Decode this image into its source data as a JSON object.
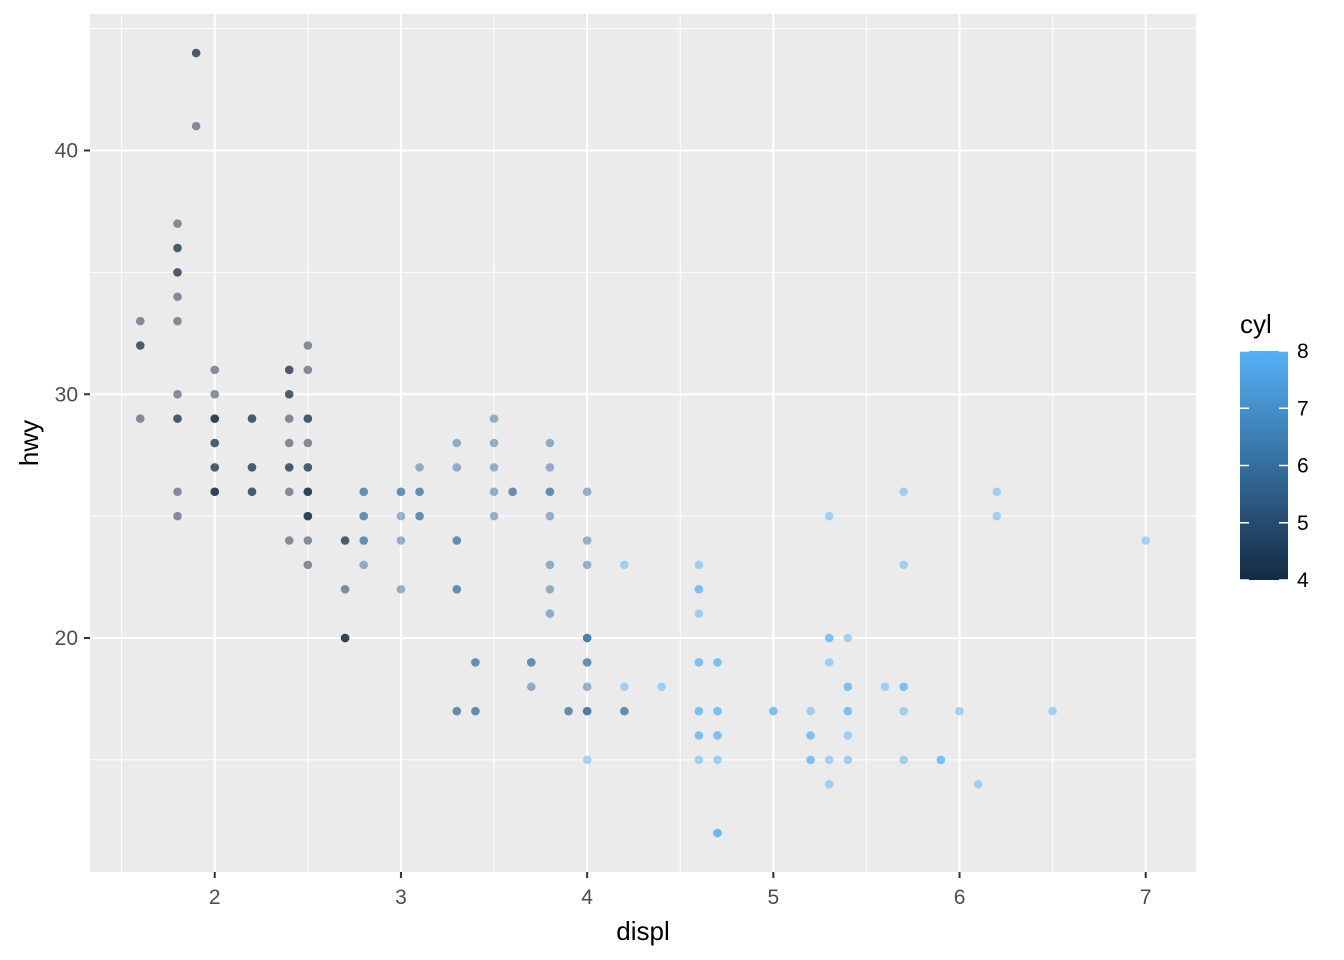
{
  "chart_data": {
    "type": "scatter",
    "title": "",
    "xlabel": "displ",
    "ylabel": "hwy",
    "xlim": [
      1.33,
      7.27
    ],
    "ylim": [
      10.4,
      45.6
    ],
    "x_ticks": [
      2,
      3,
      4,
      5,
      6,
      7
    ],
    "x_minor_ticks": [
      1.5,
      2.5,
      3.5,
      4.5,
      5.5,
      6.5
    ],
    "y_ticks": [
      20,
      30,
      40
    ],
    "y_minor_ticks": [
      15,
      25,
      35,
      45
    ],
    "x_tick_labels": [
      "2",
      "3",
      "4",
      "5",
      "6",
      "7"
    ],
    "y_tick_labels": [
      "20",
      "30",
      "40"
    ],
    "grid": true,
    "panel_background": "#ebebeb",
    "grid_color": "#ffffff",
    "point_alpha": 0.5,
    "color_scale": {
      "variable": "cyl",
      "low_color": "#132b43",
      "high_color": "#56b1f7",
      "range": [
        4,
        8
      ],
      "breaks": [
        4,
        5,
        6,
        7,
        8
      ],
      "break_labels": [
        "4",
        "5",
        "6",
        "7",
        "8"
      ]
    },
    "legend": {
      "title": "cyl",
      "position": "right"
    },
    "points": [
      {
        "x": 1.9,
        "y": 44,
        "c": 4
      },
      {
        "x": 1.9,
        "y": 44,
        "c": 4
      },
      {
        "x": 1.9,
        "y": 41,
        "c": 4
      },
      {
        "x": 1.8,
        "y": 37,
        "c": 4
      },
      {
        "x": 1.8,
        "y": 36,
        "c": 4
      },
      {
        "x": 1.8,
        "y": 36,
        "c": 4
      },
      {
        "x": 1.8,
        "y": 35,
        "c": 4
      },
      {
        "x": 1.8,
        "y": 35,
        "c": 4
      },
      {
        "x": 1.8,
        "y": 34,
        "c": 4
      },
      {
        "x": 1.8,
        "y": 33,
        "c": 4
      },
      {
        "x": 1.6,
        "y": 33,
        "c": 4
      },
      {
        "x": 1.6,
        "y": 32,
        "c": 4
      },
      {
        "x": 1.6,
        "y": 32,
        "c": 4
      },
      {
        "x": 1.6,
        "y": 29,
        "c": 4
      },
      {
        "x": 1.8,
        "y": 30,
        "c": 4
      },
      {
        "x": 1.8,
        "y": 29,
        "c": 4
      },
      {
        "x": 1.8,
        "y": 29,
        "c": 4
      },
      {
        "x": 1.8,
        "y": 26,
        "c": 4
      },
      {
        "x": 1.8,
        "y": 25,
        "c": 4
      },
      {
        "x": 2.0,
        "y": 31,
        "c": 4
      },
      {
        "x": 2.0,
        "y": 30,
        "c": 4
      },
      {
        "x": 2.0,
        "y": 29,
        "c": 4
      },
      {
        "x": 2.0,
        "y": 29,
        "c": 4
      },
      {
        "x": 2.0,
        "y": 29,
        "c": 4
      },
      {
        "x": 2.0,
        "y": 28,
        "c": 4
      },
      {
        "x": 2.0,
        "y": 28,
        "c": 4
      },
      {
        "x": 2.0,
        "y": 27,
        "c": 4
      },
      {
        "x": 2.0,
        "y": 27,
        "c": 4
      },
      {
        "x": 2.0,
        "y": 26,
        "c": 4
      },
      {
        "x": 2.0,
        "y": 26,
        "c": 4
      },
      {
        "x": 2.0,
        "y": 26,
        "c": 4
      },
      {
        "x": 2.2,
        "y": 29,
        "c": 4
      },
      {
        "x": 2.2,
        "y": 29,
        "c": 4
      },
      {
        "x": 2.2,
        "y": 27,
        "c": 4
      },
      {
        "x": 2.2,
        "y": 27,
        "c": 4
      },
      {
        "x": 2.2,
        "y": 26,
        "c": 4
      },
      {
        "x": 2.2,
        "y": 26,
        "c": 4
      },
      {
        "x": 2.4,
        "y": 31,
        "c": 4
      },
      {
        "x": 2.4,
        "y": 31,
        "c": 4
      },
      {
        "x": 2.4,
        "y": 30,
        "c": 4
      },
      {
        "x": 2.4,
        "y": 30,
        "c": 4
      },
      {
        "x": 2.4,
        "y": 29,
        "c": 4
      },
      {
        "x": 2.4,
        "y": 28,
        "c": 4
      },
      {
        "x": 2.4,
        "y": 27,
        "c": 4
      },
      {
        "x": 2.4,
        "y": 27,
        "c": 4
      },
      {
        "x": 2.4,
        "y": 26,
        "c": 4
      },
      {
        "x": 2.4,
        "y": 24,
        "c": 4
      },
      {
        "x": 2.5,
        "y": 32,
        "c": 4
      },
      {
        "x": 2.5,
        "y": 31,
        "c": 4
      },
      {
        "x": 2.5,
        "y": 29,
        "c": 4
      },
      {
        "x": 2.5,
        "y": 29,
        "c": 4
      },
      {
        "x": 2.5,
        "y": 28,
        "c": 4
      },
      {
        "x": 2.5,
        "y": 27,
        "c": 4
      },
      {
        "x": 2.5,
        "y": 27,
        "c": 4
      },
      {
        "x": 2.5,
        "y": 26,
        "c": 4
      },
      {
        "x": 2.5,
        "y": 26,
        "c": 4
      },
      {
        "x": 2.5,
        "y": 26,
        "c": 4
      },
      {
        "x": 2.5,
        "y": 25,
        "c": 4
      },
      {
        "x": 2.5,
        "y": 25,
        "c": 4
      },
      {
        "x": 2.5,
        "y": 25,
        "c": 4
      },
      {
        "x": 2.5,
        "y": 24,
        "c": 4
      },
      {
        "x": 2.5,
        "y": 23,
        "c": 4
      },
      {
        "x": 2.7,
        "y": 24,
        "c": 4
      },
      {
        "x": 2.7,
        "y": 24,
        "c": 4
      },
      {
        "x": 2.7,
        "y": 22,
        "c": 4
      },
      {
        "x": 2.7,
        "y": 20,
        "c": 4
      },
      {
        "x": 2.7,
        "y": 20,
        "c": 4
      },
      {
        "x": 2.7,
        "y": 20,
        "c": 4
      },
      {
        "x": 2.8,
        "y": 26,
        "c": 6
      },
      {
        "x": 2.8,
        "y": 26,
        "c": 6
      },
      {
        "x": 2.8,
        "y": 25,
        "c": 6
      },
      {
        "x": 2.8,
        "y": 25,
        "c": 6
      },
      {
        "x": 2.8,
        "y": 24,
        "c": 6
      },
      {
        "x": 2.8,
        "y": 24,
        "c": 6
      },
      {
        "x": 2.8,
        "y": 23,
        "c": 6
      },
      {
        "x": 3.0,
        "y": 26,
        "c": 6
      },
      {
        "x": 3.0,
        "y": 26,
        "c": 6
      },
      {
        "x": 3.0,
        "y": 25,
        "c": 6
      },
      {
        "x": 3.0,
        "y": 24,
        "c": 6
      },
      {
        "x": 3.0,
        "y": 22,
        "c": 6
      },
      {
        "x": 3.1,
        "y": 27,
        "c": 6
      },
      {
        "x": 3.1,
        "y": 26,
        "c": 6
      },
      {
        "x": 3.1,
        "y": 26,
        "c": 6
      },
      {
        "x": 3.1,
        "y": 25,
        "c": 6
      },
      {
        "x": 3.1,
        "y": 25,
        "c": 6
      },
      {
        "x": 3.3,
        "y": 28,
        "c": 6
      },
      {
        "x": 3.3,
        "y": 27,
        "c": 6
      },
      {
        "x": 3.3,
        "y": 24,
        "c": 6
      },
      {
        "x": 3.3,
        "y": 24,
        "c": 6
      },
      {
        "x": 3.3,
        "y": 22,
        "c": 6
      },
      {
        "x": 3.3,
        "y": 22,
        "c": 6
      },
      {
        "x": 3.3,
        "y": 17,
        "c": 6
      },
      {
        "x": 3.3,
        "y": 17,
        "c": 6
      },
      {
        "x": 3.4,
        "y": 19,
        "c": 6
      },
      {
        "x": 3.4,
        "y": 19,
        "c": 6
      },
      {
        "x": 3.4,
        "y": 17,
        "c": 6
      },
      {
        "x": 3.4,
        "y": 17,
        "c": 6
      },
      {
        "x": 3.5,
        "y": 29,
        "c": 6
      },
      {
        "x": 3.5,
        "y": 28,
        "c": 6
      },
      {
        "x": 3.5,
        "y": 27,
        "c": 6
      },
      {
        "x": 3.5,
        "y": 26,
        "c": 6
      },
      {
        "x": 3.5,
        "y": 25,
        "c": 6
      },
      {
        "x": 3.6,
        "y": 26,
        "c": 6
      },
      {
        "x": 3.6,
        "y": 26,
        "c": 6
      },
      {
        "x": 3.7,
        "y": 19,
        "c": 6
      },
      {
        "x": 3.7,
        "y": 19,
        "c": 6
      },
      {
        "x": 3.7,
        "y": 18,
        "c": 6
      },
      {
        "x": 3.8,
        "y": 28,
        "c": 6
      },
      {
        "x": 3.8,
        "y": 27,
        "c": 6
      },
      {
        "x": 3.8,
        "y": 26,
        "c": 6
      },
      {
        "x": 3.8,
        "y": 26,
        "c": 6
      },
      {
        "x": 3.8,
        "y": 25,
        "c": 6
      },
      {
        "x": 3.8,
        "y": 23,
        "c": 6
      },
      {
        "x": 3.8,
        "y": 22,
        "c": 6
      },
      {
        "x": 3.8,
        "y": 21,
        "c": 6
      },
      {
        "x": 3.9,
        "y": 17,
        "c": 6
      },
      {
        "x": 3.9,
        "y": 17,
        "c": 6
      },
      {
        "x": 4.0,
        "y": 26,
        "c": 6
      },
      {
        "x": 4.0,
        "y": 24,
        "c": 6
      },
      {
        "x": 4.0,
        "y": 23,
        "c": 6
      },
      {
        "x": 4.0,
        "y": 20,
        "c": 6
      },
      {
        "x": 4.0,
        "y": 20,
        "c": 6
      },
      {
        "x": 4.0,
        "y": 20,
        "c": 6
      },
      {
        "x": 4.0,
        "y": 19,
        "c": 6
      },
      {
        "x": 4.0,
        "y": 19,
        "c": 6
      },
      {
        "x": 4.0,
        "y": 18,
        "c": 6
      },
      {
        "x": 4.0,
        "y": 17,
        "c": 6
      },
      {
        "x": 4.0,
        "y": 17,
        "c": 6
      },
      {
        "x": 4.0,
        "y": 17,
        "c": 6
      },
      {
        "x": 4.0,
        "y": 15,
        "c": 8
      },
      {
        "x": 4.2,
        "y": 23,
        "c": 8
      },
      {
        "x": 4.2,
        "y": 18,
        "c": 8
      },
      {
        "x": 4.2,
        "y": 17,
        "c": 6
      },
      {
        "x": 4.2,
        "y": 17,
        "c": 6
      },
      {
        "x": 4.4,
        "y": 18,
        "c": 8
      },
      {
        "x": 4.6,
        "y": 23,
        "c": 8
      },
      {
        "x": 4.6,
        "y": 22,
        "c": 8
      },
      {
        "x": 4.6,
        "y": 22,
        "c": 8
      },
      {
        "x": 4.6,
        "y": 21,
        "c": 8
      },
      {
        "x": 4.6,
        "y": 19,
        "c": 8
      },
      {
        "x": 4.6,
        "y": 19,
        "c": 8
      },
      {
        "x": 4.6,
        "y": 17,
        "c": 8
      },
      {
        "x": 4.6,
        "y": 17,
        "c": 8
      },
      {
        "x": 4.6,
        "y": 16,
        "c": 8
      },
      {
        "x": 4.6,
        "y": 16,
        "c": 8
      },
      {
        "x": 4.6,
        "y": 15,
        "c": 8
      },
      {
        "x": 4.7,
        "y": 19,
        "c": 8
      },
      {
        "x": 4.7,
        "y": 19,
        "c": 8
      },
      {
        "x": 4.7,
        "y": 17,
        "c": 8
      },
      {
        "x": 4.7,
        "y": 17,
        "c": 8
      },
      {
        "x": 4.7,
        "y": 16,
        "c": 8
      },
      {
        "x": 4.7,
        "y": 16,
        "c": 8
      },
      {
        "x": 4.7,
        "y": 15,
        "c": 8
      },
      {
        "x": 4.7,
        "y": 12,
        "c": 8
      },
      {
        "x": 4.7,
        "y": 12,
        "c": 8
      },
      {
        "x": 4.7,
        "y": 12,
        "c": 8
      },
      {
        "x": 5.0,
        "y": 17,
        "c": 8
      },
      {
        "x": 5.0,
        "y": 17,
        "c": 8
      },
      {
        "x": 5.2,
        "y": 17,
        "c": 8
      },
      {
        "x": 5.2,
        "y": 16,
        "c": 8
      },
      {
        "x": 5.2,
        "y": 16,
        "c": 8
      },
      {
        "x": 5.2,
        "y": 15,
        "c": 8
      },
      {
        "x": 5.2,
        "y": 15,
        "c": 8
      },
      {
        "x": 5.3,
        "y": 25,
        "c": 8
      },
      {
        "x": 5.3,
        "y": 20,
        "c": 8
      },
      {
        "x": 5.3,
        "y": 20,
        "c": 8
      },
      {
        "x": 5.3,
        "y": 19,
        "c": 8
      },
      {
        "x": 5.3,
        "y": 15,
        "c": 8
      },
      {
        "x": 5.3,
        "y": 14,
        "c": 8
      },
      {
        "x": 5.4,
        "y": 20,
        "c": 8
      },
      {
        "x": 5.4,
        "y": 18,
        "c": 8
      },
      {
        "x": 5.4,
        "y": 18,
        "c": 8
      },
      {
        "x": 5.4,
        "y": 17,
        "c": 8
      },
      {
        "x": 5.4,
        "y": 17,
        "c": 8
      },
      {
        "x": 5.4,
        "y": 16,
        "c": 8
      },
      {
        "x": 5.4,
        "y": 15,
        "c": 8
      },
      {
        "x": 5.6,
        "y": 18,
        "c": 8
      },
      {
        "x": 5.7,
        "y": 26,
        "c": 8
      },
      {
        "x": 5.7,
        "y": 23,
        "c": 8
      },
      {
        "x": 5.7,
        "y": 18,
        "c": 8
      },
      {
        "x": 5.7,
        "y": 18,
        "c": 8
      },
      {
        "x": 5.7,
        "y": 17,
        "c": 8
      },
      {
        "x": 5.7,
        "y": 15,
        "c": 8
      },
      {
        "x": 5.9,
        "y": 15,
        "c": 8
      },
      {
        "x": 5.9,
        "y": 15,
        "c": 8
      },
      {
        "x": 6.0,
        "y": 17,
        "c": 8
      },
      {
        "x": 6.1,
        "y": 14,
        "c": 8
      },
      {
        "x": 6.2,
        "y": 26,
        "c": 8
      },
      {
        "x": 6.2,
        "y": 25,
        "c": 8
      },
      {
        "x": 6.5,
        "y": 17,
        "c": 8
      },
      {
        "x": 7.0,
        "y": 24,
        "c": 8
      }
    ]
  }
}
